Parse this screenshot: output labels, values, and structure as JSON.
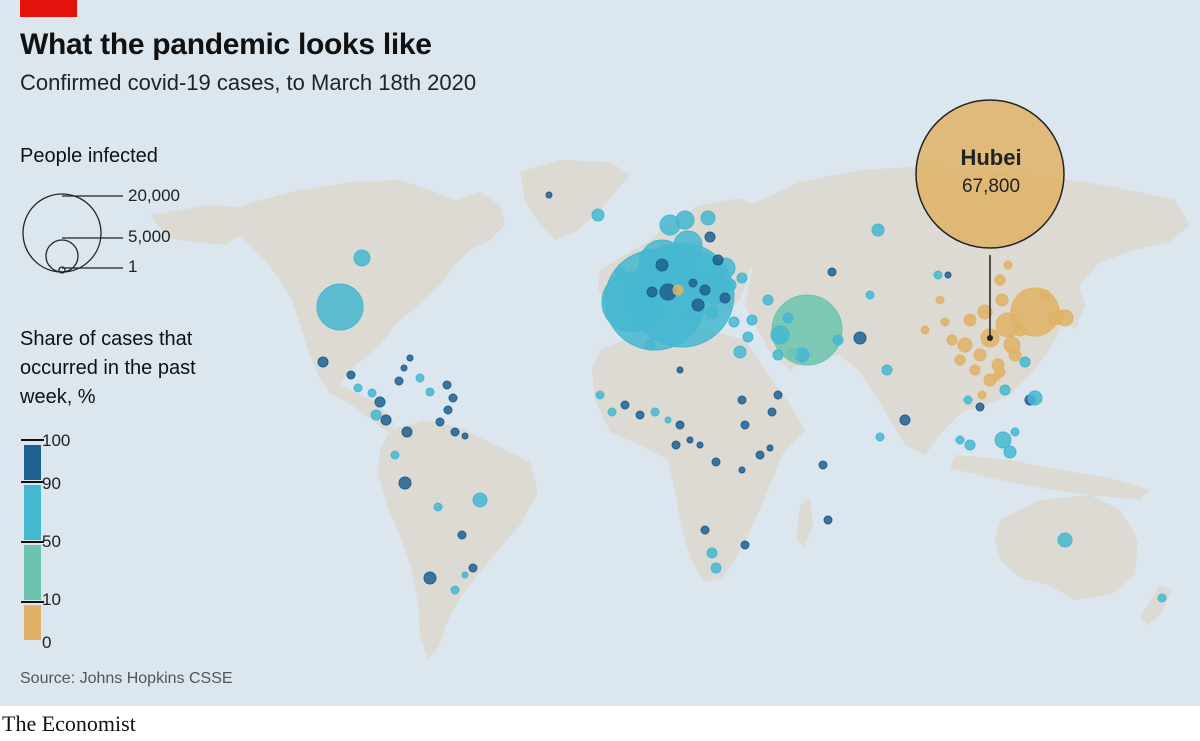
{
  "title": "What the pandemic looks like",
  "subtitle": "Confirmed covid-19 cases, to March 18th 2020",
  "size_legend": {
    "heading": "People infected",
    "labels": [
      "20,000",
      "5,000",
      "1"
    ]
  },
  "color_legend": {
    "heading_lines": [
      "Share of cases that",
      "occurred in the past",
      "week, %"
    ],
    "ticks": [
      "100",
      "90",
      "50",
      "10",
      "0"
    ],
    "colors": {
      "90-100": "#1e6091",
      "50-90": "#45b7d1",
      "10-50": "#6cc4b0",
      "0-10": "#e0b266"
    }
  },
  "callout": {
    "name": "Hubei",
    "value": "67,800"
  },
  "source": "Source: Johns Hopkins CSSE",
  "brand": "The Economist",
  "colors": {
    "ocean": "#dbe6ee",
    "land": "#dcdad2",
    "accent": "#e3120b"
  }
}
